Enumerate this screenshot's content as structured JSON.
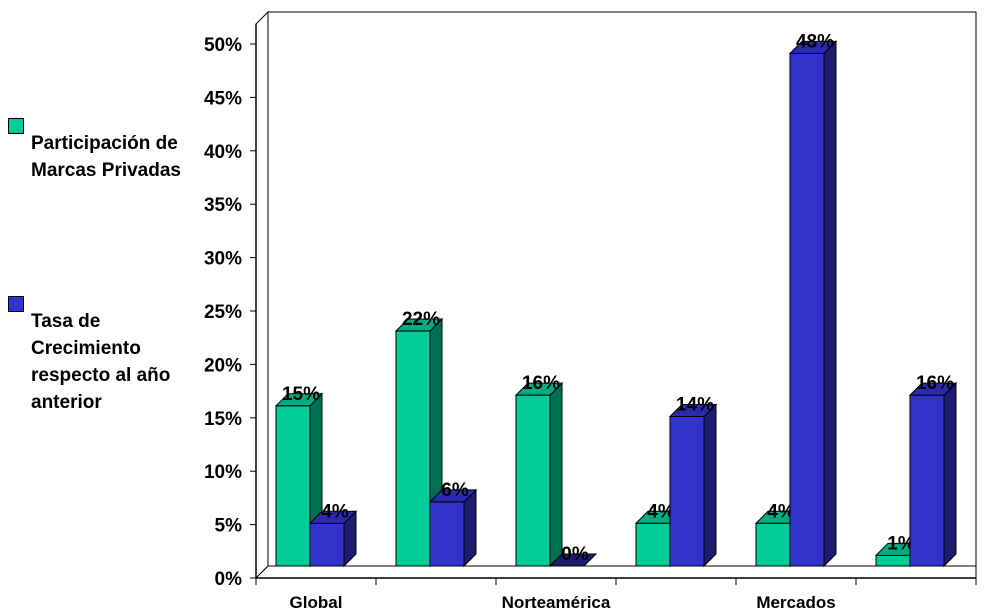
{
  "chart_data": {
    "type": "bar",
    "style": "3d-clustered-column",
    "categories": [
      "Global",
      "",
      "Norteamérica",
      "",
      "Mercados Emergentes",
      ""
    ],
    "series": [
      {
        "name": "Participación de Marcas Privadas",
        "color": "#00cc99",
        "values": [
          15,
          22,
          16,
          4,
          4,
          1
        ],
        "data_labels": [
          "15%",
          "22%",
          "16%",
          "4%",
          "4%",
          "1%"
        ]
      },
      {
        "name": "Tasa de Crecimiento respecto al año anterior",
        "color": "#3333cc",
        "values": [
          4,
          6,
          0,
          14,
          48,
          16
        ],
        "data_labels": [
          "4%",
          "6%",
          "0%",
          "14%",
          "48%",
          "16%"
        ]
      }
    ],
    "y_ticks": [
      "0%",
      "5%",
      "10%",
      "15%",
      "20%",
      "25%",
      "30%",
      "35%",
      "40%",
      "45%",
      "50%"
    ],
    "ylim": [
      0,
      50
    ],
    "grid": false,
    "legend_position": "left"
  }
}
